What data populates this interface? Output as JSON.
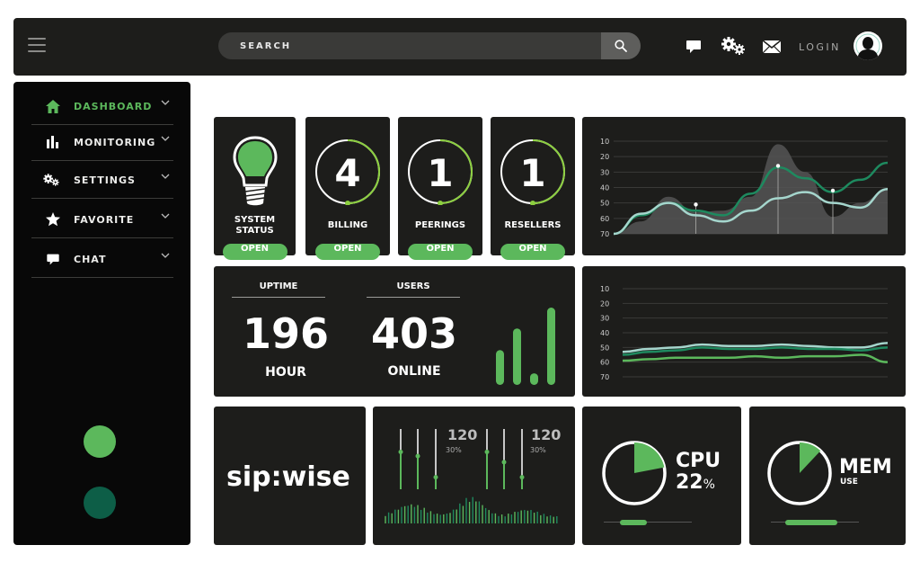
{
  "topbar": {
    "search_placeholder": "SEARCH",
    "login_label": "LOGIN",
    "icons": [
      "menu-icon",
      "search-icon",
      "chat-icon",
      "gears-icon",
      "mail-icon",
      "user-avatar-icon"
    ]
  },
  "sidebar": {
    "items": [
      {
        "label": "DASHBOARD",
        "icon": "home-icon",
        "active": true
      },
      {
        "label": "MONITORING",
        "icon": "bar-chart-icon",
        "active": false
      },
      {
        "label": "SETTINGS",
        "icon": "gears-icon",
        "active": false
      },
      {
        "label": "FAVORITE",
        "icon": "star-icon",
        "active": false
      },
      {
        "label": "CHAT",
        "icon": "chat-icon",
        "active": false
      }
    ],
    "dots": [
      {
        "color": "#5cb85c"
      },
      {
        "color": "#0d5e47"
      }
    ]
  },
  "cards": {
    "status": {
      "label_line1": "SYSTEM",
      "label_line2": "STATUS",
      "button": "OPEN"
    },
    "billing": {
      "value": "4",
      "label": "BILLING",
      "button": "OPEN"
    },
    "peerings": {
      "value": "1",
      "label": "PEERINGS",
      "button": "OPEN"
    },
    "resellers": {
      "value": "1",
      "label": "RESELLERS",
      "button": "OPEN"
    }
  },
  "stats": {
    "uptime": {
      "header": "UPTIME",
      "value": "196",
      "unit": "HOUR"
    },
    "users": {
      "header": "USERS",
      "value": "403",
      "unit": "ONLINE"
    },
    "bars": [
      0.45,
      0.73,
      0.15,
      1.0
    ]
  },
  "brand": {
    "logo_text": "sip:wise"
  },
  "mixer": {
    "left": {
      "value": "120",
      "percent": "30%"
    },
    "right": {
      "value": "120",
      "percent": "30%"
    },
    "fader_levels": [
      0.62,
      0.55,
      0.2,
      0.62,
      0.45,
      0.2
    ]
  },
  "cpu": {
    "title": "CPU",
    "value": "22",
    "unit": "%",
    "level": 0.22
  },
  "mem": {
    "title": "MEM",
    "subtitle": "USE",
    "level": 0.12
  },
  "chart_data": [
    {
      "type": "area",
      "y_ticks": [
        "10",
        "20",
        "30",
        "40",
        "50",
        "60",
        "70"
      ],
      "grid": true,
      "x": [
        0,
        1,
        2,
        3,
        4,
        5,
        6,
        7,
        8,
        9,
        10
      ],
      "series": [
        {
          "values": [
            70,
            58,
            50,
            55,
            58,
            44,
            27,
            34,
            43,
            35,
            24
          ],
          "color": "#1e8a5f"
        },
        {
          "values": [
            70,
            57,
            50,
            58,
            62,
            55,
            47,
            43,
            50,
            53,
            41
          ],
          "color": "#a5d6cd"
        },
        {
          "values": [
            70,
            62,
            46,
            56,
            55,
            46,
            12,
            30,
            59,
            50,
            41
          ],
          "color": "#555555",
          "fill": true
        }
      ],
      "highlight_points": [
        {
          "x": 3,
          "y": 51
        },
        {
          "x": 6,
          "y": 26
        },
        {
          "x": 8,
          "y": 42
        }
      ]
    },
    {
      "type": "line",
      "y_ticks": [
        "10",
        "20",
        "30",
        "40",
        "50",
        "60",
        "70"
      ],
      "grid": true,
      "x": [
        0,
        1,
        2,
        3,
        4,
        5,
        6,
        7,
        8,
        9,
        10
      ],
      "series": [
        {
          "values": [
            53,
            51,
            50,
            48,
            49,
            49,
            48,
            49,
            50,
            50,
            47
          ],
          "color": "#a5d6cd"
        },
        {
          "values": [
            59,
            58,
            57,
            57,
            57,
            56,
            57,
            56,
            56,
            55,
            60
          ],
          "color": "#5cb85c"
        },
        {
          "values": [
            55,
            53,
            52,
            50,
            51,
            51,
            50,
            51,
            51,
            52,
            50
          ],
          "color": "#1e8a5f"
        }
      ]
    }
  ]
}
